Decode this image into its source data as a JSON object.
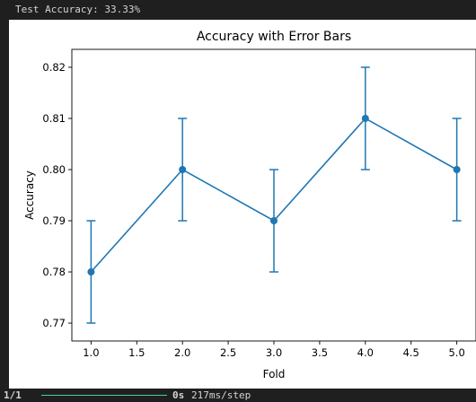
{
  "console": {
    "test_accuracy": "Test Accuracy: 33.33%",
    "progress_step": "1/1",
    "progress_time_bold": "0s",
    "progress_time": "217ms/step",
    "progress_fraction": 1.0
  },
  "chart_data": {
    "type": "line",
    "title": "Accuracy with Error Bars",
    "xlabel": "Fold",
    "ylabel": "Accuracy",
    "x": [
      1.0,
      2.0,
      3.0,
      4.0,
      5.0
    ],
    "series": [
      {
        "values": [
          0.78,
          0.8,
          0.79,
          0.81,
          0.8
        ],
        "errors": [
          0.01,
          0.01,
          0.01,
          0.01,
          0.01
        ],
        "color": "#1f77b4"
      }
    ],
    "xlim": [
      0.79,
      5.21
    ],
    "ylim": [
      0.7665,
      0.8235
    ],
    "xticks": [
      1.0,
      1.5,
      2.0,
      2.5,
      3.0,
      3.5,
      4.0,
      4.5,
      5.0
    ],
    "xtick_labels": [
      "1.0",
      "1.5",
      "2.0",
      "2.5",
      "3.0",
      "3.5",
      "4.0",
      "4.5",
      "5.0"
    ],
    "yticks": [
      0.77,
      0.78,
      0.79,
      0.8,
      0.81,
      0.82
    ],
    "ytick_labels": [
      "0.77",
      "0.78",
      "0.79",
      "0.80",
      "0.81",
      "0.82"
    ],
    "grid": false,
    "legend": "none"
  }
}
